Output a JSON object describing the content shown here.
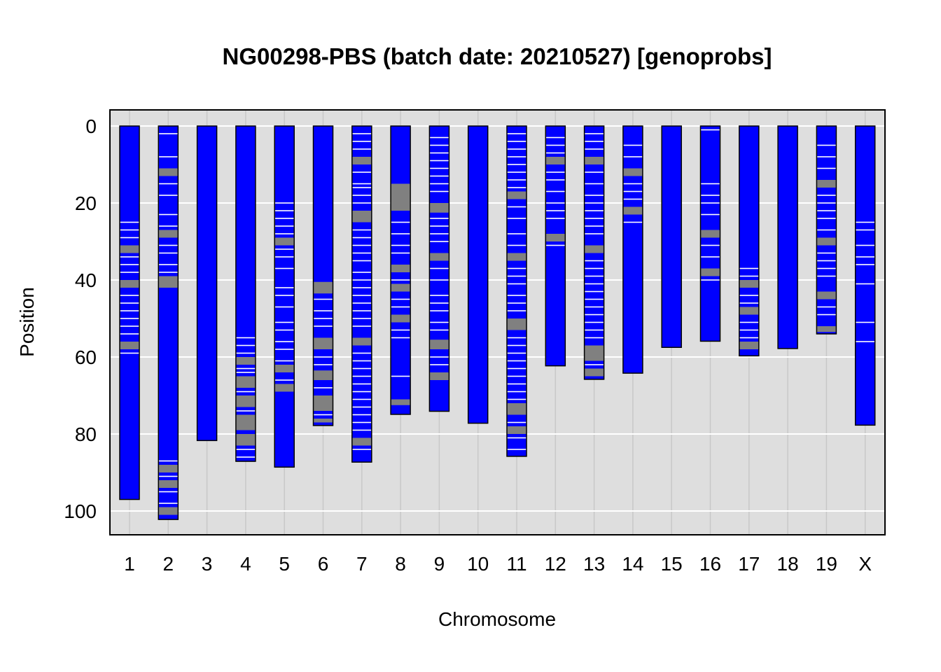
{
  "chart_data": {
    "type": "bar",
    "title": "NG00298-PBS (batch date: 20210527) [genoprobs]",
    "xlabel": "Chromosome",
    "ylabel": "Position",
    "y_reversed": true,
    "ylim": [
      0,
      105
    ],
    "yticks": [
      0,
      20,
      40,
      60,
      80,
      100
    ],
    "grid": true,
    "colors": {
      "bar": "#0000ff",
      "band_missing": "#808080",
      "band_het": "#ffffff",
      "panel": "#dedede",
      "gridline": "#ffffff",
      "vgrid": "#c8c8c8",
      "outline": "#000000"
    },
    "categories": [
      "1",
      "2",
      "3",
      "4",
      "5",
      "6",
      "7",
      "8",
      "9",
      "10",
      "11",
      "12",
      "13",
      "14",
      "15",
      "16",
      "17",
      "18",
      "19",
      "X"
    ],
    "lengths": [
      97.0,
      102.2,
      81.7,
      87.1,
      88.6,
      77.8,
      87.3,
      74.9,
      74.1,
      77.2,
      85.8,
      62.3,
      65.8,
      64.2,
      57.5,
      55.9,
      59.7,
      57.8,
      54.0,
      77.7
    ],
    "grey_regions": [
      {
        "chr": "1",
        "start": 31,
        "end": 33
      },
      {
        "chr": "1",
        "start": 40,
        "end": 42
      },
      {
        "chr": "1",
        "start": 56,
        "end": 58
      },
      {
        "chr": "2",
        "start": 11,
        "end": 13
      },
      {
        "chr": "2",
        "start": 27,
        "end": 29
      },
      {
        "chr": "2",
        "start": 39,
        "end": 42
      },
      {
        "chr": "2",
        "start": 88,
        "end": 90
      },
      {
        "chr": "2",
        "start": 92,
        "end": 94
      },
      {
        "chr": "2",
        "start": 99,
        "end": 101
      },
      {
        "chr": "4",
        "start": 60,
        "end": 62
      },
      {
        "chr": "4",
        "start": 65,
        "end": 68
      },
      {
        "chr": "4",
        "start": 70,
        "end": 73
      },
      {
        "chr": "4",
        "start": 75,
        "end": 79
      },
      {
        "chr": "4",
        "start": 80,
        "end": 83
      },
      {
        "chr": "5",
        "start": 29,
        "end": 31
      },
      {
        "chr": "5",
        "start": 62,
        "end": 64
      },
      {
        "chr": "5",
        "start": 67,
        "end": 69
      },
      {
        "chr": "6",
        "start": 40.5,
        "end": 43.5
      },
      {
        "chr": "6",
        "start": 55,
        "end": 58
      },
      {
        "chr": "6",
        "start": 63.5,
        "end": 66
      },
      {
        "chr": "6",
        "start": 70,
        "end": 74
      },
      {
        "chr": "6",
        "start": 76,
        "end": 77
      },
      {
        "chr": "7",
        "start": 8,
        "end": 10
      },
      {
        "chr": "7",
        "start": 22,
        "end": 25
      },
      {
        "chr": "7",
        "start": 55,
        "end": 57
      },
      {
        "chr": "7",
        "start": 81,
        "end": 83
      },
      {
        "chr": "8",
        "start": 15,
        "end": 22
      },
      {
        "chr": "8",
        "start": 36,
        "end": 38
      },
      {
        "chr": "8",
        "start": 41,
        "end": 43
      },
      {
        "chr": "8",
        "start": 49,
        "end": 51
      },
      {
        "chr": "8",
        "start": 71,
        "end": 72.5
      },
      {
        "chr": "9",
        "start": 20,
        "end": 22.5
      },
      {
        "chr": "9",
        "start": 33,
        "end": 35
      },
      {
        "chr": "9",
        "start": 55.5,
        "end": 58
      },
      {
        "chr": "9",
        "start": 64,
        "end": 66
      },
      {
        "chr": "11",
        "start": 17,
        "end": 19
      },
      {
        "chr": "11",
        "start": 33,
        "end": 35
      },
      {
        "chr": "11",
        "start": 50,
        "end": 53
      },
      {
        "chr": "11",
        "start": 72,
        "end": 75
      },
      {
        "chr": "11",
        "start": 78,
        "end": 80
      },
      {
        "chr": "12",
        "start": 8,
        "end": 10
      },
      {
        "chr": "12",
        "start": 28,
        "end": 30
      },
      {
        "chr": "13",
        "start": 8,
        "end": 10
      },
      {
        "chr": "13",
        "start": 31,
        "end": 33
      },
      {
        "chr": "13",
        "start": 57,
        "end": 61
      },
      {
        "chr": "13",
        "start": 63,
        "end": 65
      },
      {
        "chr": "14",
        "start": 11,
        "end": 13
      },
      {
        "chr": "14",
        "start": 21,
        "end": 23
      },
      {
        "chr": "16",
        "start": 27,
        "end": 29
      },
      {
        "chr": "16",
        "start": 37,
        "end": 39
      },
      {
        "chr": "17",
        "start": 40,
        "end": 42
      },
      {
        "chr": "17",
        "start": 47,
        "end": 49
      },
      {
        "chr": "17",
        "start": 56,
        "end": 58
      },
      {
        "chr": "19",
        "start": 14,
        "end": 16
      },
      {
        "chr": "19",
        "start": 29,
        "end": 31
      },
      {
        "chr": "19",
        "start": 43,
        "end": 45
      },
      {
        "chr": "19",
        "start": 52,
        "end": 53.5
      }
    ],
    "het_markers": [
      {
        "chr": "1",
        "pos": [
          25,
          27,
          29,
          34,
          36,
          38,
          44,
          46,
          48,
          50,
          52,
          54,
          59
        ]
      },
      {
        "chr": "2",
        "pos": [
          2,
          8,
          15,
          18,
          23,
          26,
          31,
          33,
          36,
          38,
          87,
          91,
          95,
          98
        ]
      },
      {
        "chr": "4",
        "pos": [
          55,
          57,
          59,
          63,
          64,
          69,
          74,
          84,
          86
        ]
      },
      {
        "chr": "5",
        "pos": [
          20,
          22,
          24,
          26,
          28,
          32,
          34,
          37,
          42,
          44,
          47,
          51,
          53,
          56,
          58,
          61,
          66
        ]
      },
      {
        "chr": "6",
        "pos": [
          45,
          48,
          50,
          52,
          60,
          62,
          68,
          75
        ]
      },
      {
        "chr": "7",
        "pos": [
          2,
          4,
          6,
          12,
          15,
          16,
          18,
          20,
          27,
          29,
          31,
          33,
          35,
          38,
          40,
          42,
          44,
          46,
          48,
          50,
          52,
          59,
          61,
          63,
          65,
          67,
          69,
          71,
          73,
          75,
          77,
          79,
          84
        ]
      },
      {
        "chr": "8",
        "pos": [
          25,
          28,
          31,
          33,
          40,
          45,
          47,
          53,
          55,
          65
        ]
      },
      {
        "chr": "9",
        "pos": [
          3,
          5,
          7,
          9,
          11,
          13,
          15,
          17,
          24,
          26,
          28,
          30,
          37,
          40,
          44,
          46,
          48,
          51,
          53,
          60,
          62
        ]
      },
      {
        "chr": "10",
        "pos": []
      },
      {
        "chr": "11",
        "pos": [
          2,
          4,
          6,
          8,
          10,
          12,
          14,
          16,
          21,
          24,
          28,
          31,
          37,
          39,
          41,
          44,
          46,
          48,
          55,
          57,
          59,
          61,
          63,
          65,
          67,
          69,
          71,
          77,
          81,
          84
        ]
      },
      {
        "chr": "12",
        "pos": [
          3,
          5,
          7,
          12,
          14,
          17,
          20,
          22,
          24,
          31
        ]
      },
      {
        "chr": "13",
        "pos": [
          2,
          4,
          6,
          12,
          15,
          18,
          20,
          22,
          24,
          26,
          28,
          35,
          37,
          39,
          41,
          43,
          45,
          47,
          49,
          51,
          53,
          55,
          62
        ]
      },
      {
        "chr": "14",
        "pos": [
          5,
          8,
          15,
          17,
          19,
          25
        ]
      },
      {
        "chr": "16",
        "pos": [
          1,
          15,
          18,
          20,
          23,
          31,
          34,
          40
        ]
      },
      {
        "chr": "17",
        "pos": [
          37,
          39,
          44,
          46,
          51,
          53,
          55
        ]
      },
      {
        "chr": "19",
        "pos": [
          5,
          8,
          11,
          18,
          20,
          22,
          24,
          27,
          33,
          35,
          37,
          39,
          47,
          49
        ]
      },
      {
        "chr": "X",
        "pos": [
          25,
          27,
          31,
          34,
          36,
          41,
          51,
          56
        ]
      }
    ]
  }
}
